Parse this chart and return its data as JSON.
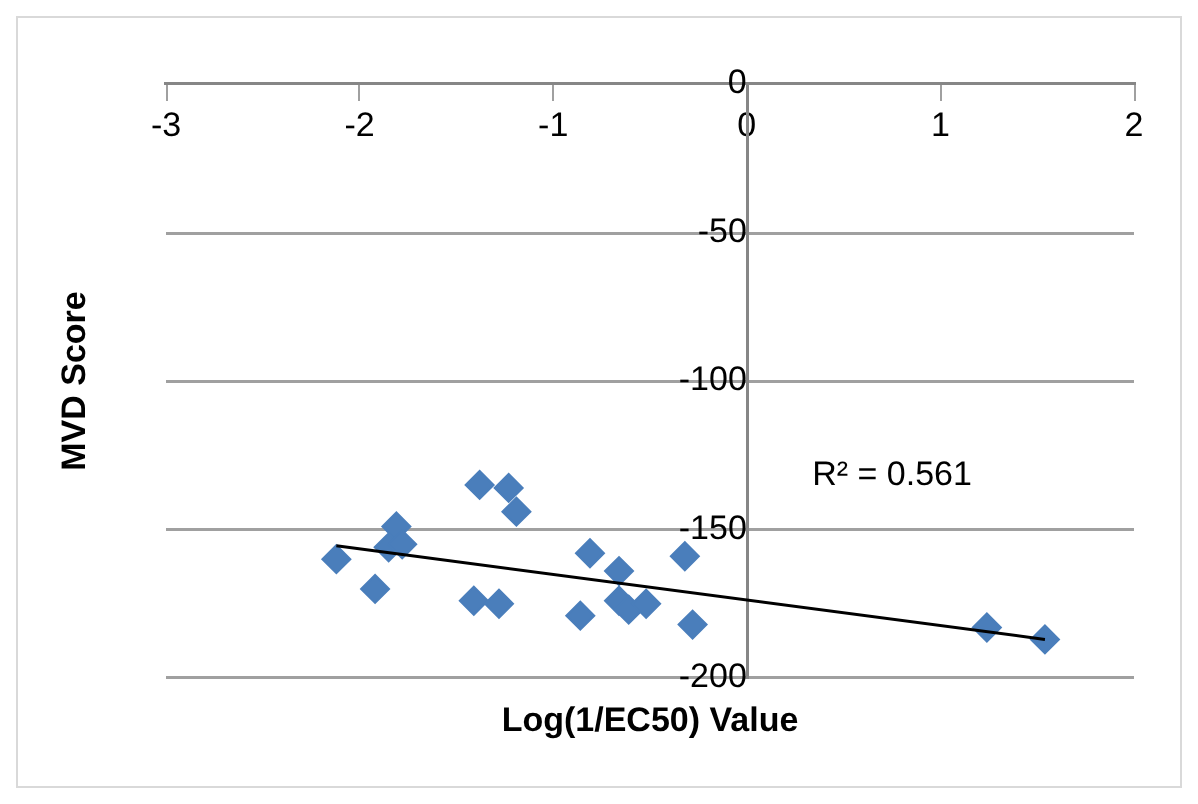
{
  "chart_data": {
    "type": "scatter",
    "xlabel": "Log(1/EC50) Value",
    "ylabel": "MVD Score",
    "series": [
      {
        "marker": "diamond",
        "color": "#4a7ebb",
        "x": [
          -2.12,
          -1.92,
          -1.81,
          -1.85,
          -1.78,
          -1.38,
          -1.23,
          -1.19,
          -1.41,
          -1.28,
          -0.81,
          -0.86,
          -0.66,
          -0.66,
          -0.61,
          -0.52,
          -0.32,
          -0.28,
          1.24,
          1.54
        ],
        "values": [
          -160,
          -170,
          -149,
          -156,
          -155,
          -135,
          -136,
          -144,
          -174,
          -175,
          -158,
          -179,
          -164,
          -174,
          -177,
          -175,
          -159,
          -182,
          -183,
          -187
        ]
      },
      {
        "type": "line",
        "marker": "none",
        "color": "#000000",
        "x": [
          -2.12,
          1.54
        ],
        "values": [
          -155.5,
          -187
        ]
      }
    ],
    "xlim": [
      -3,
      2
    ],
    "xticks": [
      -3,
      -2,
      -1,
      0,
      1,
      2
    ],
    "ylim": [
      -200,
      0
    ],
    "yticks": [
      -200,
      -150,
      -100,
      -50,
      0
    ],
    "grid": "y",
    "annotations": [
      "R² = 0.561"
    ]
  }
}
